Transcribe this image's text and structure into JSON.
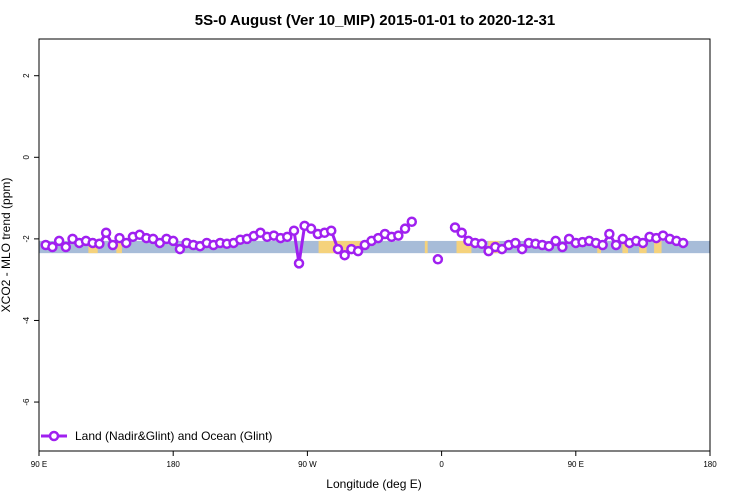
{
  "chart_data": {
    "type": "line",
    "title": "5S-0 August (Ver 10_MIP)   2015-01-01 to 2020-12-31",
    "xlabel": "Longitude (deg E)",
    "ylabel": "XCO2 - MLO trend (ppm)",
    "xlim": [
      90,
      450
    ],
    "ylim": [
      -7.2,
      2.9
    ],
    "x_ticks": [
      {
        "value": 90,
        "label": "90 E"
      },
      {
        "value": 162,
        "label": "180"
      },
      {
        "value": 234,
        "label": "90 W"
      },
      {
        "value": 306,
        "label": "0"
      },
      {
        "value": 378,
        "label": "90 E"
      },
      {
        "value": 450,
        "label": "180"
      }
    ],
    "y_ticks": [
      {
        "value": 2,
        "label": "2"
      },
      {
        "value": 0,
        "label": "0"
      },
      {
        "value": -2,
        "label": "-2"
      },
      {
        "value": -4,
        "label": "-4"
      },
      {
        "value": -6,
        "label": "-6"
      }
    ],
    "background_band": {
      "ymin": -2.35,
      "ymax": -2.05,
      "color": "#a7bcd8"
    },
    "land_segments": [
      {
        "x0": 116.5,
        "x1": 121.5
      },
      {
        "x0": 131.5,
        "x1": 134.5
      },
      {
        "x0": 240,
        "x1": 263
      },
      {
        "x0": 297,
        "x1": 298.5
      },
      {
        "x0": 314,
        "x1": 322
      },
      {
        "x0": 331,
        "x1": 337
      },
      {
        "x0": 389.5,
        "x1": 391.5
      },
      {
        "x0": 403,
        "x1": 406
      },
      {
        "x0": 412,
        "x1": 416
      },
      {
        "x0": 420,
        "x1": 424
      }
    ],
    "land_color": "#f5d27c",
    "series": [
      {
        "name": "Land (Nadir&Glint) and Ocean (Glint)",
        "color": "#a020f0",
        "segments": [
          [
            [
              93.6,
              -2.15
            ],
            [
              97.2,
              -2.2
            ],
            [
              100.8,
              -2.05
            ],
            [
              104.4,
              -2.2
            ],
            [
              108,
              -2.0
            ],
            [
              111.6,
              -2.1
            ],
            [
              115.2,
              -2.05
            ],
            [
              118.8,
              -2.1
            ],
            [
              122.4,
              -2.12
            ],
            [
              126,
              -1.85
            ],
            [
              129.6,
              -2.15
            ],
            [
              133.2,
              -1.98
            ],
            [
              136.8,
              -2.1
            ],
            [
              140.4,
              -1.95
            ],
            [
              144,
              -1.9
            ],
            [
              147.6,
              -1.98
            ],
            [
              151.2,
              -2.0
            ],
            [
              154.8,
              -2.1
            ],
            [
              158.4,
              -2.0
            ],
            [
              162,
              -2.05
            ],
            [
              165.6,
              -2.25
            ],
            [
              169.2,
              -2.1
            ],
            [
              172.8,
              -2.15
            ],
            [
              176.4,
              -2.18
            ],
            [
              180,
              -2.1
            ],
            [
              183.6,
              -2.15
            ],
            [
              187.2,
              -2.1
            ],
            [
              190.8,
              -2.12
            ],
            [
              194.4,
              -2.1
            ],
            [
              198,
              -2.02
            ],
            [
              201.6,
              -2.0
            ],
            [
              205.2,
              -1.93
            ],
            [
              208.8,
              -1.85
            ],
            [
              212.4,
              -1.95
            ],
            [
              216,
              -1.92
            ],
            [
              219.6,
              -1.98
            ],
            [
              223.2,
              -1.95
            ],
            [
              226.8,
              -1.8
            ],
            [
              229.5,
              -2.6
            ],
            [
              232.5,
              -1.68
            ],
            [
              236,
              -1.75
            ],
            [
              239.6,
              -1.88
            ],
            [
              243.2,
              -1.85
            ],
            [
              246.8,
              -1.8
            ],
            [
              250.4,
              -2.25
            ],
            [
              254,
              -2.4
            ],
            [
              257.6,
              -2.25
            ],
            [
              261.2,
              -2.3
            ],
            [
              264.8,
              -2.15
            ],
            [
              268.4,
              -2.05
            ],
            [
              272,
              -1.98
            ],
            [
              275.6,
              -1.88
            ],
            [
              279.2,
              -1.95
            ],
            [
              282.8,
              -1.92
            ],
            [
              286.4,
              -1.75
            ],
            [
              290,
              -1.58
            ]
          ],
          [
            [
              304,
              -2.5
            ]
          ],
          [
            [
              313.2,
              -1.72
            ],
            [
              316.8,
              -1.85
            ],
            [
              320.4,
              -2.05
            ],
            [
              324,
              -2.1
            ],
            [
              327.6,
              -2.12
            ],
            [
              331.2,
              -2.3
            ],
            [
              334.8,
              -2.2
            ],
            [
              338.4,
              -2.25
            ],
            [
              342,
              -2.15
            ],
            [
              345.6,
              -2.1
            ],
            [
              349.2,
              -2.25
            ],
            [
              352.8,
              -2.1
            ],
            [
              356.4,
              -2.12
            ],
            [
              360,
              -2.15
            ],
            [
              363.6,
              -2.18
            ],
            [
              367.2,
              -2.05
            ],
            [
              370.8,
              -2.2
            ],
            [
              374.4,
              -2.0
            ],
            [
              378,
              -2.1
            ],
            [
              381.6,
              -2.08
            ],
            [
              385.2,
              -2.05
            ],
            [
              388.8,
              -2.1
            ],
            [
              392.4,
              -2.15
            ],
            [
              396,
              -1.88
            ],
            [
              399.6,
              -2.15
            ],
            [
              403.2,
              -2.0
            ],
            [
              406.8,
              -2.1
            ],
            [
              410.4,
              -2.05
            ],
            [
              414,
              -2.1
            ],
            [
              417.6,
              -1.95
            ],
            [
              421.2,
              -1.98
            ],
            [
              424.8,
              -1.92
            ],
            [
              428.4,
              -2.0
            ],
            [
              432,
              -2.05
            ],
            [
              435.6,
              -2.1
            ]
          ]
        ]
      }
    ]
  }
}
